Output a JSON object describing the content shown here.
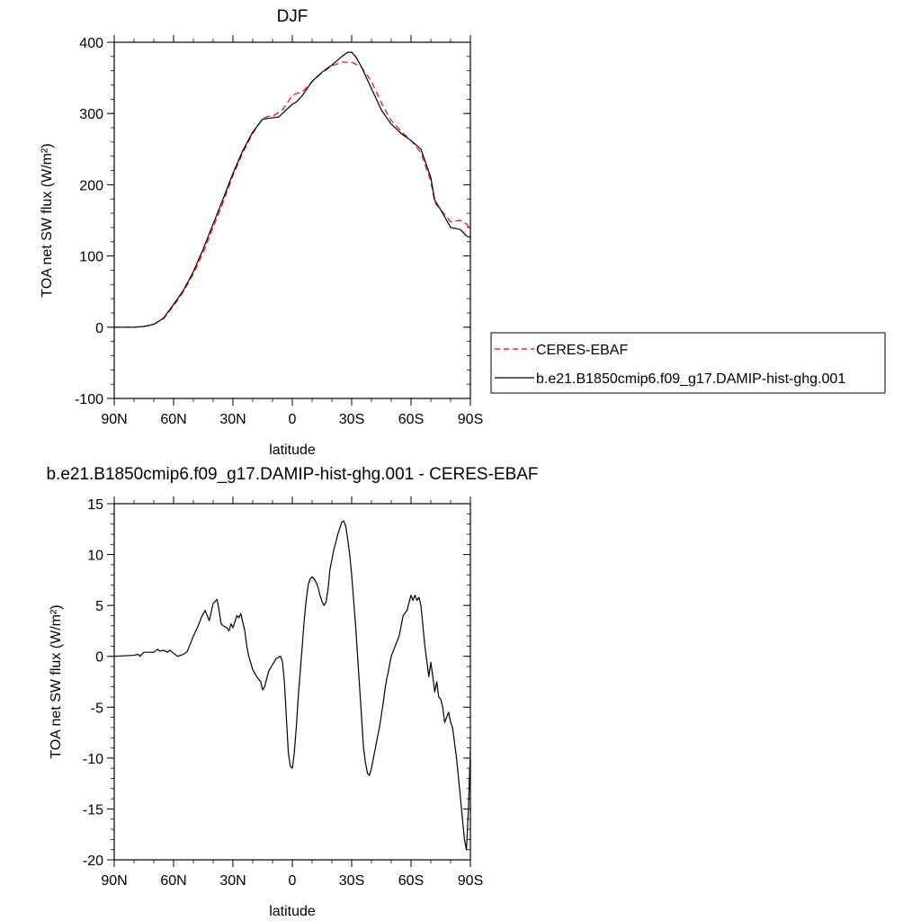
{
  "chart_data": [
    {
      "type": "line",
      "title": "DJF",
      "xlabel": "latitude",
      "ylabel": "TOA net SW flux (W/m²)",
      "xlim": [
        -90,
        90
      ],
      "ylim": [
        -100,
        400
      ],
      "x_ticks": [
        {
          "value": -90,
          "label": "90N"
        },
        {
          "value": -60,
          "label": "60N"
        },
        {
          "value": -30,
          "label": "30N"
        },
        {
          "value": 0,
          "label": "0"
        },
        {
          "value": 30,
          "label": "30S"
        },
        {
          "value": 60,
          "label": "60S"
        },
        {
          "value": 90,
          "label": "90S"
        }
      ],
      "y_ticks": [
        {
          "value": -100,
          "label": "-100"
        },
        {
          "value": 0,
          "label": "0"
        },
        {
          "value": 100,
          "label": "100"
        },
        {
          "value": 200,
          "label": "200"
        },
        {
          "value": 300,
          "label": "300"
        },
        {
          "value": 400,
          "label": "400"
        }
      ],
      "legend": {
        "placement": "right"
      },
      "series": [
        {
          "name": "CERES-EBAF",
          "color": "#ff0000",
          "dash": "dashed",
          "x": [
            -90,
            -80,
            -75,
            -70,
            -65,
            -60,
            -55,
            -50,
            -45,
            -40,
            -35,
            -30,
            -25,
            -20,
            -15,
            -12,
            -10,
            -5,
            0,
            2,
            5,
            10,
            15,
            20,
            25,
            30,
            35,
            40,
            45,
            50,
            55,
            60,
            65,
            70,
            72,
            75,
            80,
            85,
            88,
            90
          ],
          "y": [
            0,
            0,
            1,
            4,
            12,
            30,
            50,
            75,
            105,
            140,
            175,
            213,
            245,
            272,
            293,
            296,
            296,
            305,
            325,
            328,
            330,
            345,
            357,
            367,
            372,
            372,
            365,
            345,
            315,
            290,
            275,
            262,
            245,
            205,
            175,
            165,
            148,
            150,
            145,
            138
          ]
        },
        {
          "name": "b.e21.B1850cmip6.f09_g17.DAMIP-hist-ghg.001",
          "color": "#000000",
          "dash": "solid",
          "x": [
            -90,
            -80,
            -75,
            -70,
            -65,
            -60,
            -55,
            -50,
            -45,
            -40,
            -35,
            -30,
            -25,
            -20,
            -15,
            -10,
            -7,
            -5,
            0,
            2,
            5,
            10,
            15,
            20,
            25,
            28,
            30,
            32,
            35,
            40,
            45,
            50,
            55,
            60,
            65,
            70,
            72,
            75,
            80,
            85,
            88,
            90
          ],
          "y": [
            0,
            0,
            1,
            4,
            13,
            32,
            52,
            78,
            110,
            145,
            180,
            216,
            248,
            274,
            292,
            294,
            295,
            300,
            313,
            316,
            325,
            345,
            358,
            368,
            380,
            386,
            386,
            380,
            365,
            335,
            305,
            285,
            272,
            262,
            250,
            210,
            178,
            165,
            140,
            137,
            128,
            126
          ]
        }
      ]
    },
    {
      "type": "line",
      "title": "b.e21.B1850cmip6.f09_g17.DAMIP-hist-ghg.001 - CERES-EBAF",
      "xlabel": "latitude",
      "ylabel": "TOA net SW flux (W/m²)",
      "xlim": [
        -90,
        90
      ],
      "ylim": [
        -20,
        15
      ],
      "x_ticks": [
        {
          "value": -90,
          "label": "90N"
        },
        {
          "value": -60,
          "label": "60N"
        },
        {
          "value": -30,
          "label": "30N"
        },
        {
          "value": 0,
          "label": "0"
        },
        {
          "value": 30,
          "label": "30S"
        },
        {
          "value": 60,
          "label": "60S"
        },
        {
          "value": 90,
          "label": "90S"
        }
      ],
      "y_ticks": [
        {
          "value": -20,
          "label": "-20"
        },
        {
          "value": -15,
          "label": "-15"
        },
        {
          "value": -10,
          "label": "-10"
        },
        {
          "value": -5,
          "label": "-5"
        },
        {
          "value": 0,
          "label": "0"
        },
        {
          "value": 5,
          "label": "5"
        },
        {
          "value": 10,
          "label": "10"
        },
        {
          "value": 15,
          "label": "15"
        }
      ],
      "series": [
        {
          "color": "#000000",
          "x": [
            -90,
            -80,
            -78,
            -77,
            -75,
            -70,
            -68,
            -67,
            -65,
            -63,
            -62,
            -60,
            -58,
            -55,
            -53,
            -50,
            -48,
            -46,
            -45,
            -44,
            -42,
            -40,
            -38,
            -37,
            -36,
            -35,
            -33,
            -32,
            -31,
            -30,
            -28,
            -27,
            -26,
            -25,
            -24,
            -23,
            -22,
            -20,
            -18,
            -16,
            -15,
            -14,
            -12,
            -10,
            -8,
            -6,
            -5,
            -4,
            -3,
            -2,
            -1,
            0,
            1,
            2,
            3,
            4,
            5,
            6,
            7,
            8,
            9,
            10,
            11,
            12,
            13,
            14,
            15,
            16,
            17,
            18,
            19,
            20,
            21,
            22,
            23,
            24,
            25,
            26,
            27,
            28,
            29,
            30,
            31,
            32,
            33,
            34,
            35,
            36,
            37,
            38,
            39,
            40,
            41,
            42,
            43,
            44,
            45,
            46,
            47,
            48,
            49,
            50,
            52,
            54,
            56,
            58,
            59,
            60,
            61,
            62,
            63,
            64,
            65,
            66,
            67,
            68,
            69,
            70,
            71,
            72,
            73,
            74,
            75,
            76,
            77,
            78,
            79,
            80,
            81,
            82,
            83,
            84,
            85,
            86,
            87,
            88,
            89,
            90
          ],
          "y": [
            0,
            0.1,
            0.2,
            0,
            0.4,
            0.4,
            0.7,
            0.5,
            0.6,
            0.4,
            0.6,
            0.3,
            0,
            0.2,
            0.5,
            2,
            2.8,
            3.8,
            4.2,
            4.5,
            3.5,
            5.2,
            5.6,
            4.5,
            3.2,
            3.0,
            2.8,
            2.5,
            3.2,
            2.8,
            4.0,
            3.8,
            4.2,
            3.3,
            2.5,
            1.0,
            0,
            -1.3,
            -2.0,
            -2.5,
            -3.3,
            -3.0,
            -1.5,
            -0.8,
            -0.2,
            0,
            -0.5,
            -2.5,
            -6.0,
            -9.5,
            -10.8,
            -11.0,
            -9.5,
            -7.0,
            -4.0,
            -1.5,
            1.0,
            3.5,
            5.5,
            7.0,
            7.6,
            7.8,
            7.6,
            7.3,
            6.8,
            6.0,
            5.4,
            5.0,
            5.3,
            6.5,
            8.5,
            9.5,
            10.5,
            11.2,
            12.0,
            12.6,
            13.2,
            13.3,
            12.8,
            11.5,
            10.0,
            8.0,
            5.5,
            3.0,
            0,
            -3.0,
            -6.0,
            -9.0,
            -10.5,
            -11.5,
            -11.7,
            -11.0,
            -10.0,
            -9.0,
            -8.0,
            -7.0,
            -5.8,
            -4.5,
            -3.0,
            -2.0,
            -1.0,
            0,
            1.0,
            2.0,
            4.0,
            4.5,
            5.3,
            6.0,
            5.5,
            6.0,
            5.5,
            5.8,
            5.0,
            3.0,
            1.0,
            -0.5,
            -2.0,
            -0.6,
            -2.0,
            -3.5,
            -2.5,
            -4.0,
            -4.2,
            -5.0,
            -6.5,
            -6.0,
            -5.5,
            -6.5,
            -7.0,
            -8.5,
            -10.0,
            -12.0,
            -14.0,
            -16.0,
            -18.0,
            -19.0,
            -15.0,
            -9.3
          ]
        }
      ]
    }
  ]
}
